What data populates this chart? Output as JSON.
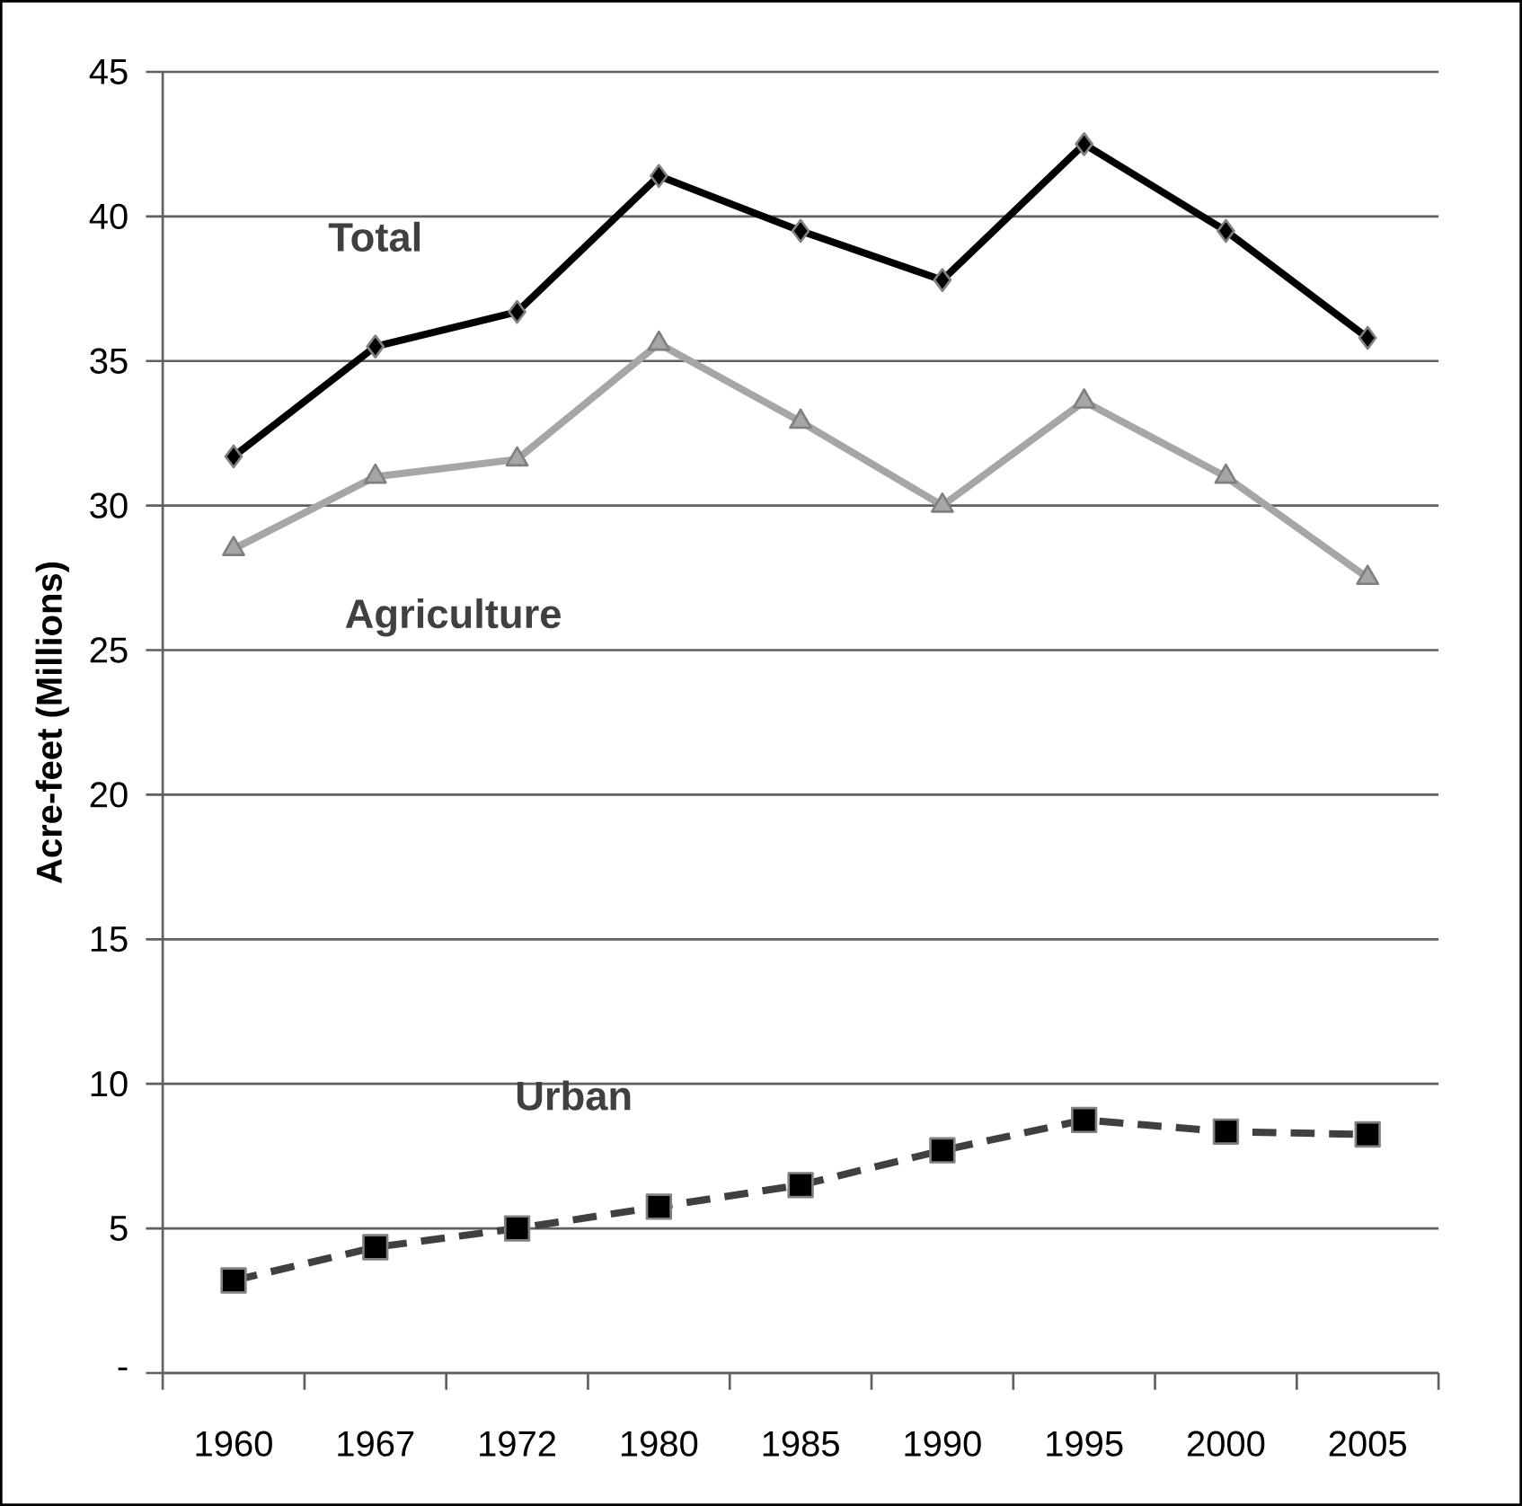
{
  "chart_data": {
    "type": "line",
    "ylabel": "Acre-feet (Millions)",
    "categories": [
      "1960",
      "1967",
      "1972",
      "1980",
      "1985",
      "1990",
      "1995",
      "2000",
      "2005"
    ],
    "series": [
      {
        "name": "Total",
        "color": "#000000",
        "marker": "diamond",
        "line_style": "solid",
        "values": [
          31.7,
          35.5,
          36.7,
          41.4,
          39.5,
          37.8,
          42.5,
          39.5,
          35.8
        ]
      },
      {
        "name": "Agriculture",
        "color": "#a6a6a6",
        "marker": "triangle",
        "line_style": "solid",
        "values": [
          28.5,
          31.0,
          31.6,
          35.6,
          32.9,
          30.0,
          33.6,
          31.0,
          27.5
        ]
      },
      {
        "name": "Urban",
        "color": "#404040",
        "marker": "square",
        "line_style": "dashed",
        "values": [
          3.2,
          4.35,
          5.0,
          5.75,
          6.5,
          7.7,
          8.75,
          8.35,
          8.25
        ]
      }
    ],
    "ylim": [
      0,
      45
    ],
    "yticks": [
      {
        "value": 0,
        "label": "-"
      },
      5,
      10,
      15,
      20,
      25,
      30,
      35,
      40,
      45
    ],
    "grid": "y"
  }
}
